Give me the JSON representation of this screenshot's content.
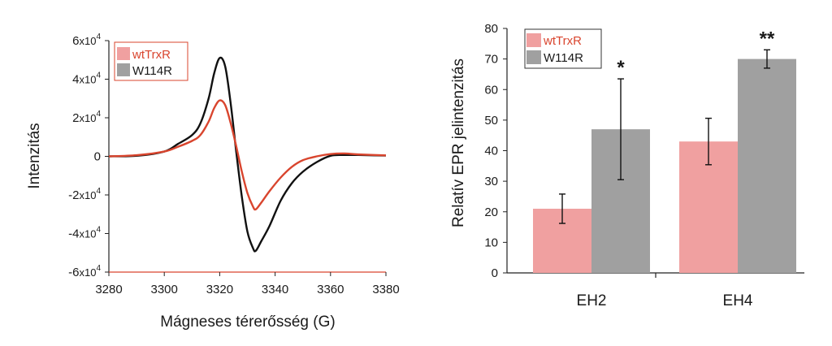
{
  "chart_data": [
    {
      "type": "line",
      "xlabel": "Mágneses térerősség (G)",
      "ylabel": "Intenzitás",
      "xlim": [
        3280,
        3380
      ],
      "ylim": [
        -60000,
        60000
      ],
      "x_ticks": [
        "3280",
        "3300",
        "3320",
        "3340",
        "3360",
        "3380"
      ],
      "y_ticks": [
        {
          "value": 60000,
          "mantissa": "6",
          "sign": ""
        },
        {
          "value": 40000,
          "mantissa": "4",
          "sign": ""
        },
        {
          "value": 20000,
          "mantissa": "2",
          "sign": ""
        },
        {
          "value": 0,
          "mantissa": "0",
          "sign": ""
        },
        {
          "value": -20000,
          "mantissa": "2",
          "sign": "-"
        },
        {
          "value": -40000,
          "mantissa": "4",
          "sign": "-"
        },
        {
          "value": -60000,
          "mantissa": "6",
          "sign": "-"
        }
      ],
      "y_tick_suffix": "x10",
      "y_tick_exponent": "4",
      "legend": [
        "wtTrxR",
        "W114R"
      ],
      "series": [
        {
          "name": "wtTrxR",
          "color": "#d9452e",
          "x": [
            3280,
            3290,
            3300,
            3305,
            3310,
            3313,
            3316,
            3318,
            3320,
            3322,
            3324,
            3326,
            3328,
            3330,
            3332,
            3333,
            3335,
            3338,
            3342,
            3346,
            3350,
            3355,
            3360,
            3365,
            3370,
            3380
          ],
          "y": [
            0,
            600,
            2500,
            5000,
            8000,
            11000,
            18000,
            25000,
            29000,
            26500,
            17000,
            5000,
            -8000,
            -19000,
            -26000,
            -27500,
            -24000,
            -18000,
            -11000,
            -5500,
            -2000,
            0,
            1200,
            1500,
            1000,
            500
          ]
        },
        {
          "name": "W114R",
          "color": "#111111",
          "x": [
            3280,
            3290,
            3300,
            3305,
            3310,
            3313,
            3316,
            3318,
            3320,
            3322,
            3324,
            3326,
            3328,
            3330,
            3332,
            3333,
            3335,
            3338,
            3342,
            3346,
            3350,
            3355,
            3360,
            3365,
            3370,
            3380
          ],
          "y": [
            0,
            300,
            2500,
            6500,
            11000,
            17000,
            30000,
            43000,
            51000,
            46500,
            27000,
            2000,
            -21000,
            -39000,
            -47500,
            -49000,
            -44000,
            -36000,
            -23000,
            -14000,
            -8000,
            -3000,
            300,
            700,
            700,
            400
          ]
        }
      ]
    },
    {
      "type": "bar",
      "ylabel": "Relatív EPR jelintenzitás",
      "ylim": [
        0,
        80
      ],
      "y_ticks": [
        "0",
        "10",
        "20",
        "30",
        "40",
        "50",
        "60",
        "70",
        "80"
      ],
      "categories": [
        "EH2",
        "EH4"
      ],
      "legend": [
        "wtTrxR",
        "W114R"
      ],
      "series": [
        {
          "name": "wtTrxR",
          "color": "#f0a0a0",
          "values": [
            21,
            43
          ],
          "errors": [
            4.8,
            7.6
          ]
        },
        {
          "name": "W114R",
          "color": "#a0a0a0",
          "values": [
            47,
            70
          ],
          "errors": [
            16.5,
            3
          ]
        }
      ],
      "significance": [
        "*",
        "**"
      ]
    }
  ]
}
